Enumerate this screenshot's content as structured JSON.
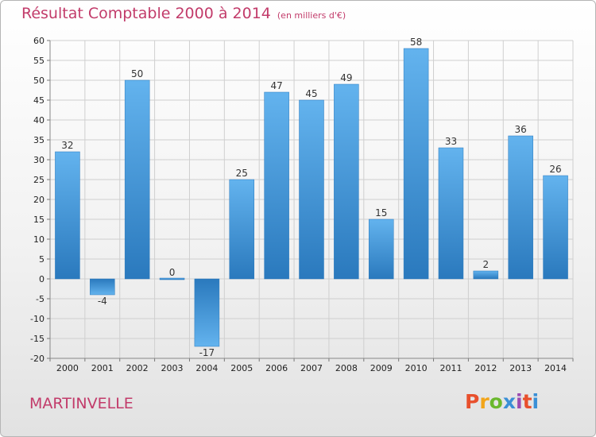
{
  "header": {
    "title": "Résultat Comptable 2000 à 2014",
    "unit": "(en milliers d'€)"
  },
  "footer": {
    "commune": "MARTINVELLE",
    "brand": "Proxiti",
    "brand_colors": [
      "#e8502d",
      "#f2a51a",
      "#6ab82d",
      "#3a8fd6",
      "#9c4bb1",
      "#e8502d",
      "#3a8fd6"
    ]
  },
  "colors": {
    "bar_dark": "#2a79bd",
    "bar_light": "#63b3ee",
    "title": "#c23b6a",
    "grid": "#cfcfcf"
  },
  "chart_data": {
    "type": "bar",
    "title": "Résultat Comptable 2000 à 2014",
    "subtitle": "(en milliers d'€)",
    "xlabel": "",
    "ylabel": "",
    "categories": [
      "2000",
      "2001",
      "2002",
      "2003",
      "2004",
      "2005",
      "2006",
      "2007",
      "2008",
      "2009",
      "2010",
      "2011",
      "2012",
      "2013",
      "2014"
    ],
    "values": [
      32,
      -4,
      50,
      0,
      -17,
      25,
      47,
      45,
      49,
      15,
      58,
      33,
      2,
      36,
      26
    ],
    "data_labels": [
      "32",
      "-4",
      "50",
      "0",
      "-17",
      "25",
      "47",
      "45",
      "49",
      "15",
      "58",
      "33",
      "2",
      "36",
      "26"
    ],
    "ylim": [
      -20,
      60
    ],
    "yticks": [
      -20,
      -15,
      -10,
      -5,
      0,
      5,
      10,
      15,
      20,
      25,
      30,
      35,
      40,
      45,
      50,
      55,
      60
    ],
    "grid": true,
    "legend": "none"
  }
}
